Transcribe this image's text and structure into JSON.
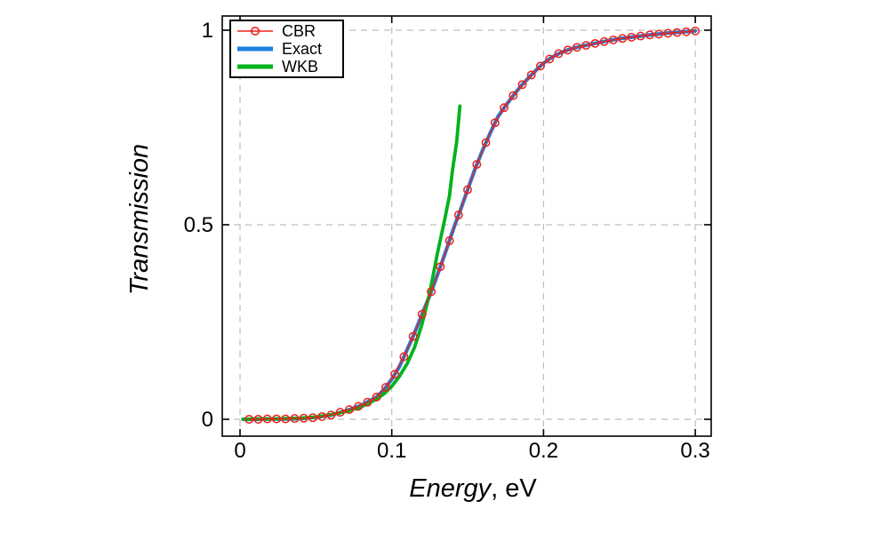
{
  "figure": {
    "background": "#ffffff",
    "text_color": "#000000",
    "grid_color": "#bdbdbd",
    "border_color": "#000000"
  },
  "axes": {
    "x": {
      "label_italic": "Energy",
      "label_rest": ", eV",
      "ticks": [
        {
          "value": 0,
          "label": "0"
        },
        {
          "value": 0.1,
          "label": "0.1"
        },
        {
          "value": 0.2,
          "label": "0.2"
        },
        {
          "value": 0.3,
          "label": "0.3"
        }
      ]
    },
    "y": {
      "label": "Transmission",
      "ticks": [
        {
          "value": 0,
          "label": "0"
        },
        {
          "value": 0.5,
          "label": "0.5"
        },
        {
          "value": 1,
          "label": "1"
        }
      ]
    }
  },
  "legend": {
    "items": [
      {
        "label": "CBR",
        "color": "#ee2018",
        "marker": "open-circle-on-thin-line"
      },
      {
        "label": "Exact",
        "color": "#1e7fe0",
        "marker": "thick-line"
      },
      {
        "label": "WKB",
        "color": "#00b21c",
        "marker": "thick-line"
      }
    ]
  },
  "chart_data": {
    "type": "line",
    "title": "",
    "xlabel": "Energy, eV",
    "ylabel": "Transmission",
    "xlim": [
      -0.012,
      0.311
    ],
    "ylim": [
      -0.045,
      1.04
    ],
    "x_ticks": [
      0,
      0.1,
      0.2,
      0.3
    ],
    "y_ticks": [
      0,
      0.5,
      1
    ],
    "grid": "dashed, at every tick, light gray",
    "legend_position": "top-left inside plot",
    "series": [
      {
        "name": "Exact",
        "color": "#1e7fe0",
        "style": "thick solid line",
        "points": [
          [
            0.002,
            0.0
          ],
          [
            0.01,
            0.0
          ],
          [
            0.02,
            0.001
          ],
          [
            0.03,
            0.001
          ],
          [
            0.04,
            0.002
          ],
          [
            0.05,
            0.005
          ],
          [
            0.06,
            0.011
          ],
          [
            0.07,
            0.022
          ],
          [
            0.08,
            0.036
          ],
          [
            0.09,
            0.057
          ],
          [
            0.095,
            0.077
          ],
          [
            0.1,
            0.103
          ],
          [
            0.105,
            0.135
          ],
          [
            0.11,
            0.178
          ],
          [
            0.115,
            0.222
          ],
          [
            0.12,
            0.27
          ],
          [
            0.125,
            0.318
          ],
          [
            0.13,
            0.37
          ],
          [
            0.135,
            0.425
          ],
          [
            0.1416,
            0.5
          ],
          [
            0.145,
            0.535
          ],
          [
            0.15,
            0.59
          ],
          [
            0.155,
            0.645
          ],
          [
            0.16,
            0.693
          ],
          [
            0.165,
            0.737
          ],
          [
            0.17,
            0.778
          ],
          [
            0.175,
            0.806
          ],
          [
            0.18,
            0.832
          ],
          [
            0.185,
            0.856
          ],
          [
            0.19,
            0.877
          ],
          [
            0.195,
            0.897
          ],
          [
            0.2,
            0.915
          ],
          [
            0.205,
            0.929
          ],
          [
            0.21,
            0.94
          ],
          [
            0.215,
            0.948
          ],
          [
            0.22,
            0.954
          ],
          [
            0.23,
            0.963
          ],
          [
            0.24,
            0.971
          ],
          [
            0.25,
            0.978
          ],
          [
            0.26,
            0.983
          ],
          [
            0.27,
            0.988
          ],
          [
            0.28,
            0.992
          ],
          [
            0.29,
            0.995
          ],
          [
            0.3,
            0.998
          ]
        ]
      },
      {
        "name": "WKB",
        "color": "#00b21c",
        "style": "thick solid line, ends near barrier top",
        "points": [
          [
            0.002,
            0.0
          ],
          [
            0.01,
            0.001
          ],
          [
            0.02,
            0.001
          ],
          [
            0.03,
            0.002
          ],
          [
            0.04,
            0.003
          ],
          [
            0.05,
            0.006
          ],
          [
            0.06,
            0.012
          ],
          [
            0.07,
            0.02
          ],
          [
            0.08,
            0.032
          ],
          [
            0.09,
            0.052
          ],
          [
            0.095,
            0.066
          ],
          [
            0.1,
            0.085
          ],
          [
            0.105,
            0.11
          ],
          [
            0.11,
            0.142
          ],
          [
            0.115,
            0.185
          ],
          [
            0.12,
            0.245
          ],
          [
            0.125,
            0.325
          ],
          [
            0.13,
            0.425
          ],
          [
            0.135,
            0.515
          ],
          [
            0.138,
            0.575
          ],
          [
            0.14,
            0.64
          ],
          [
            0.1428,
            0.715
          ],
          [
            0.1449,
            0.805
          ]
        ]
      },
      {
        "name": "CBR",
        "color": "#ee2018",
        "style": "thin line with open circle markers",
        "points": [
          [
            0.006,
            0.0
          ],
          [
            0.012,
            0.0
          ],
          [
            0.018,
            0.001
          ],
          [
            0.024,
            0.001
          ],
          [
            0.03,
            0.001
          ],
          [
            0.036,
            0.002
          ],
          [
            0.042,
            0.003
          ],
          [
            0.048,
            0.004
          ],
          [
            0.054,
            0.007
          ],
          [
            0.06,
            0.011
          ],
          [
            0.066,
            0.018
          ],
          [
            0.072,
            0.025
          ],
          [
            0.078,
            0.033
          ],
          [
            0.084,
            0.044
          ],
          [
            0.09,
            0.057
          ],
          [
            0.096,
            0.082
          ],
          [
            0.102,
            0.116
          ],
          [
            0.108,
            0.161
          ],
          [
            0.114,
            0.213
          ],
          [
            0.12,
            0.27
          ],
          [
            0.126,
            0.328
          ],
          [
            0.132,
            0.392
          ],
          [
            0.138,
            0.459
          ],
          [
            0.144,
            0.525
          ],
          [
            0.15,
            0.59
          ],
          [
            0.156,
            0.655
          ],
          [
            0.162,
            0.711
          ],
          [
            0.168,
            0.762
          ],
          [
            0.174,
            0.801
          ],
          [
            0.18,
            0.832
          ],
          [
            0.186,
            0.86
          ],
          [
            0.192,
            0.885
          ],
          [
            0.198,
            0.908
          ],
          [
            0.204,
            0.926
          ],
          [
            0.21,
            0.94
          ],
          [
            0.216,
            0.949
          ],
          [
            0.222,
            0.956
          ],
          [
            0.228,
            0.961
          ],
          [
            0.234,
            0.966
          ],
          [
            0.24,
            0.971
          ],
          [
            0.246,
            0.975
          ],
          [
            0.252,
            0.979
          ],
          [
            0.258,
            0.982
          ],
          [
            0.264,
            0.985
          ],
          [
            0.27,
            0.988
          ],
          [
            0.276,
            0.99
          ],
          [
            0.282,
            0.992
          ],
          [
            0.288,
            0.994
          ],
          [
            0.294,
            0.996
          ],
          [
            0.3,
            0.998
          ]
        ]
      }
    ]
  }
}
